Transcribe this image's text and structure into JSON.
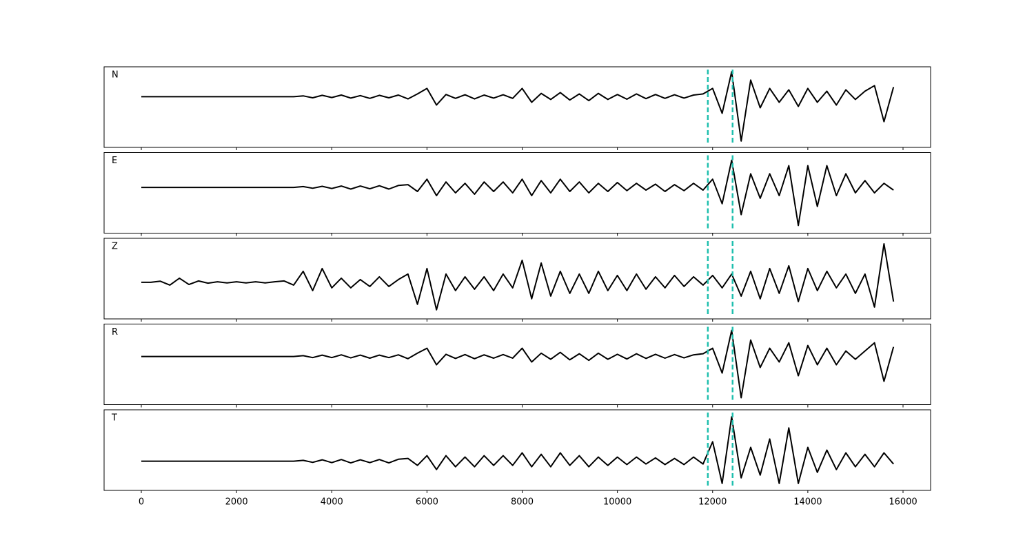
{
  "chart_data": {
    "type": "line",
    "layout": "stacked",
    "xlim": [
      -782,
      16579
    ],
    "xticks": [
      0,
      2000,
      4000,
      6000,
      8000,
      10000,
      12000,
      14000,
      16000
    ],
    "vlines": [
      11900,
      12420
    ],
    "vline_color": "#1fbfae",
    "x": [
      0,
      200,
      400,
      600,
      800,
      1000,
      1200,
      1400,
      1600,
      1800,
      2000,
      2200,
      2400,
      2600,
      2800,
      3000,
      3200,
      3400,
      3600,
      3800,
      4000,
      4200,
      4400,
      4600,
      4800,
      5000,
      5200,
      5400,
      5600,
      5800,
      6000,
      6200,
      6400,
      6600,
      6800,
      7000,
      7200,
      7400,
      7600,
      7800,
      8000,
      8200,
      8400,
      8600,
      8800,
      9000,
      9200,
      9400,
      9600,
      9800,
      10000,
      10200,
      10400,
      10600,
      10800,
      11000,
      11200,
      11400,
      11600,
      11800,
      12000,
      12200,
      12400,
      12600,
      12800,
      13000,
      13200,
      13400,
      13600,
      13800,
      14000,
      14200,
      14400,
      14600,
      14800,
      15000,
      15200,
      15400,
      15600,
      15800
    ],
    "series": [
      {
        "name": "N",
        "color": "#000000",
        "ylim": [
          -1.83,
          1.08
        ],
        "values": [
          0,
          0,
          0,
          0,
          0,
          0,
          0,
          0,
          0,
          0,
          0,
          0,
          0,
          0,
          0,
          0,
          0,
          0.03,
          -0.04,
          0.05,
          -0.03,
          0.06,
          -0.05,
          0.04,
          -0.06,
          0.05,
          -0.04,
          0.06,
          -0.08,
          0.1,
          0.3,
          -0.3,
          0.08,
          -0.06,
          0.07,
          -0.08,
          0.06,
          -0.05,
          0.07,
          -0.06,
          0.3,
          -0.2,
          0.12,
          -0.1,
          0.15,
          -0.12,
          0.1,
          -0.14,
          0.12,
          -0.1,
          0.08,
          -0.09,
          0.1,
          -0.07,
          0.08,
          -0.06,
          0.07,
          -0.05,
          0.06,
          0.1,
          0.3,
          -0.6,
          0.9,
          -1.6,
          0.6,
          -0.4,
          0.3,
          -0.2,
          0.25,
          -0.35,
          0.3,
          -0.2,
          0.2,
          -0.3,
          0.25,
          -0.1,
          0.2,
          0.4,
          -0.9,
          0.35
        ]
      },
      {
        "name": "E",
        "color": "#000000",
        "ylim": [
          -1.68,
          1.28
        ],
        "values": [
          0,
          0,
          0,
          0,
          0,
          0,
          0,
          0,
          0,
          0,
          0,
          0,
          0,
          0,
          0,
          0,
          0,
          0.03,
          -0.03,
          0.04,
          -0.04,
          0.05,
          -0.06,
          0.05,
          -0.05,
          0.06,
          -0.06,
          0.07,
          0.1,
          -0.15,
          0.3,
          -0.3,
          0.2,
          -0.2,
          0.15,
          -0.25,
          0.2,
          -0.15,
          0.2,
          -0.2,
          0.3,
          -0.3,
          0.25,
          -0.2,
          0.3,
          -0.15,
          0.2,
          -0.2,
          0.15,
          -0.15,
          0.18,
          -0.12,
          0.15,
          -0.1,
          0.12,
          -0.15,
          0.1,
          -0.12,
          0.15,
          -0.1,
          0.3,
          -0.6,
          1.0,
          -1.0,
          0.5,
          -0.4,
          0.5,
          -0.3,
          0.8,
          -1.4,
          0.8,
          -0.7,
          0.8,
          -0.3,
          0.5,
          -0.2,
          0.25,
          -0.2,
          0.15,
          -0.1
        ]
      },
      {
        "name": "Z",
        "color": "#000000",
        "ylim": [
          -1.33,
          1.6
        ],
        "values": [
          0,
          0,
          0.04,
          -0.1,
          0.15,
          -0.08,
          0.05,
          -0.03,
          0.02,
          -0.02,
          0.02,
          -0.02,
          0.02,
          -0.02,
          0.02,
          0.05,
          -0.1,
          0.4,
          -0.3,
          0.5,
          -0.2,
          0.15,
          -0.2,
          0.1,
          -0.15,
          0.2,
          -0.15,
          0.1,
          0.3,
          -0.8,
          0.5,
          -1.0,
          0.3,
          -0.3,
          0.2,
          -0.25,
          0.2,
          -0.3,
          0.3,
          -0.2,
          0.8,
          -0.6,
          0.7,
          -0.5,
          0.4,
          -0.4,
          0.3,
          -0.4,
          0.4,
          -0.3,
          0.25,
          -0.3,
          0.3,
          -0.25,
          0.2,
          -0.2,
          0.25,
          -0.15,
          0.2,
          -0.1,
          0.25,
          -0.2,
          0.3,
          -0.5,
          0.4,
          -0.6,
          0.5,
          -0.4,
          0.6,
          -0.7,
          0.5,
          -0.3,
          0.4,
          -0.2,
          0.3,
          -0.4,
          0.3,
          -0.9,
          1.4,
          -0.7
        ]
      },
      {
        "name": "R",
        "color": "#000000",
        "ylim": [
          -1.75,
          1.18
        ],
        "values": [
          0,
          0,
          0,
          0,
          0,
          0,
          0,
          0,
          0,
          0,
          0,
          0,
          0,
          0,
          0,
          0,
          0,
          0.03,
          -0.04,
          0.05,
          -0.04,
          0.06,
          -0.05,
          0.05,
          -0.06,
          0.05,
          -0.04,
          0.06,
          -0.08,
          0.12,
          0.3,
          -0.3,
          0.08,
          -0.07,
          0.07,
          -0.08,
          0.06,
          -0.06,
          0.07,
          -0.06,
          0.3,
          -0.2,
          0.12,
          -0.1,
          0.15,
          -0.12,
          0.1,
          -0.14,
          0.12,
          -0.1,
          0.08,
          -0.09,
          0.1,
          -0.07,
          0.08,
          -0.06,
          0.07,
          -0.05,
          0.06,
          0.1,
          0.3,
          -0.6,
          0.95,
          -1.5,
          0.6,
          -0.4,
          0.3,
          -0.2,
          0.5,
          -0.7,
          0.4,
          -0.3,
          0.3,
          -0.3,
          0.2,
          -0.1,
          0.2,
          0.5,
          -0.9,
          0.35
        ]
      },
      {
        "name": "T",
        "color": "#000000",
        "ylim": [
          -1.05,
          1.85
        ],
        "values": [
          0,
          0,
          0,
          0,
          0,
          0,
          0,
          0,
          0,
          0,
          0,
          0,
          0,
          0,
          0,
          0,
          0,
          0.03,
          -0.04,
          0.05,
          -0.05,
          0.06,
          -0.06,
          0.05,
          -0.05,
          0.06,
          -0.06,
          0.07,
          0.1,
          -0.15,
          0.2,
          -0.3,
          0.2,
          -0.2,
          0.15,
          -0.2,
          0.2,
          -0.15,
          0.2,
          -0.15,
          0.3,
          -0.2,
          0.25,
          -0.2,
          0.3,
          -0.15,
          0.2,
          -0.2,
          0.15,
          -0.15,
          0.15,
          -0.12,
          0.15,
          -0.1,
          0.12,
          -0.12,
          0.1,
          -0.12,
          0.15,
          -0.1,
          0.7,
          -0.8,
          1.6,
          -0.6,
          0.5,
          -0.5,
          0.8,
          -0.8,
          1.2,
          -0.8,
          0.5,
          -0.4,
          0.4,
          -0.3,
          0.3,
          -0.2,
          0.25,
          -0.2,
          0.3,
          -0.1
        ]
      }
    ]
  }
}
